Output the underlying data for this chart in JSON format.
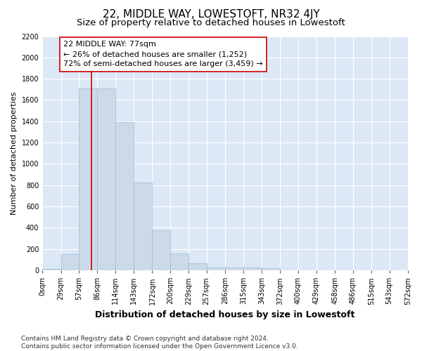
{
  "title": "22, MIDDLE WAY, LOWESTOFT, NR32 4JY",
  "subtitle": "Size of property relative to detached houses in Lowestoft",
  "xlabel": "Distribution of detached houses by size in Lowestoft",
  "ylabel": "Number of detached properties",
  "footer_line1": "Contains HM Land Registry data © Crown copyright and database right 2024.",
  "footer_line2": "Contains public sector information licensed under the Open Government Licence v3.0.",
  "bar_edges": [
    0,
    29,
    57,
    86,
    114,
    143,
    172,
    200,
    229,
    257,
    286,
    315,
    343,
    372,
    400,
    429,
    458,
    486,
    515,
    543,
    572
  ],
  "bar_values": [
    15,
    155,
    1710,
    1710,
    1390,
    825,
    380,
    160,
    65,
    30,
    25,
    25,
    20,
    0,
    0,
    0,
    0,
    0,
    0,
    0
  ],
  "bar_color": "#ccd9e8",
  "bar_edgecolor": "#a0b8d0",
  "property_value": 77,
  "vline_color": "#cc0000",
  "annotation_text": "22 MIDDLE WAY: 77sqm\n← 26% of detached houses are smaller (1,252)\n72% of semi-detached houses are larger (3,459) →",
  "annotation_box_edgecolor": "#cc0000",
  "ylim": [
    0,
    2200
  ],
  "yticks": [
    0,
    200,
    400,
    600,
    800,
    1000,
    1200,
    1400,
    1600,
    1800,
    2000,
    2200
  ],
  "background_color": "#dce8f5",
  "grid_color": "#ffffff",
  "title_fontsize": 11,
  "subtitle_fontsize": 9.5,
  "xlabel_fontsize": 9,
  "ylabel_fontsize": 8,
  "tick_fontsize": 7,
  "annotation_fontsize": 8,
  "footer_fontsize": 6.5
}
